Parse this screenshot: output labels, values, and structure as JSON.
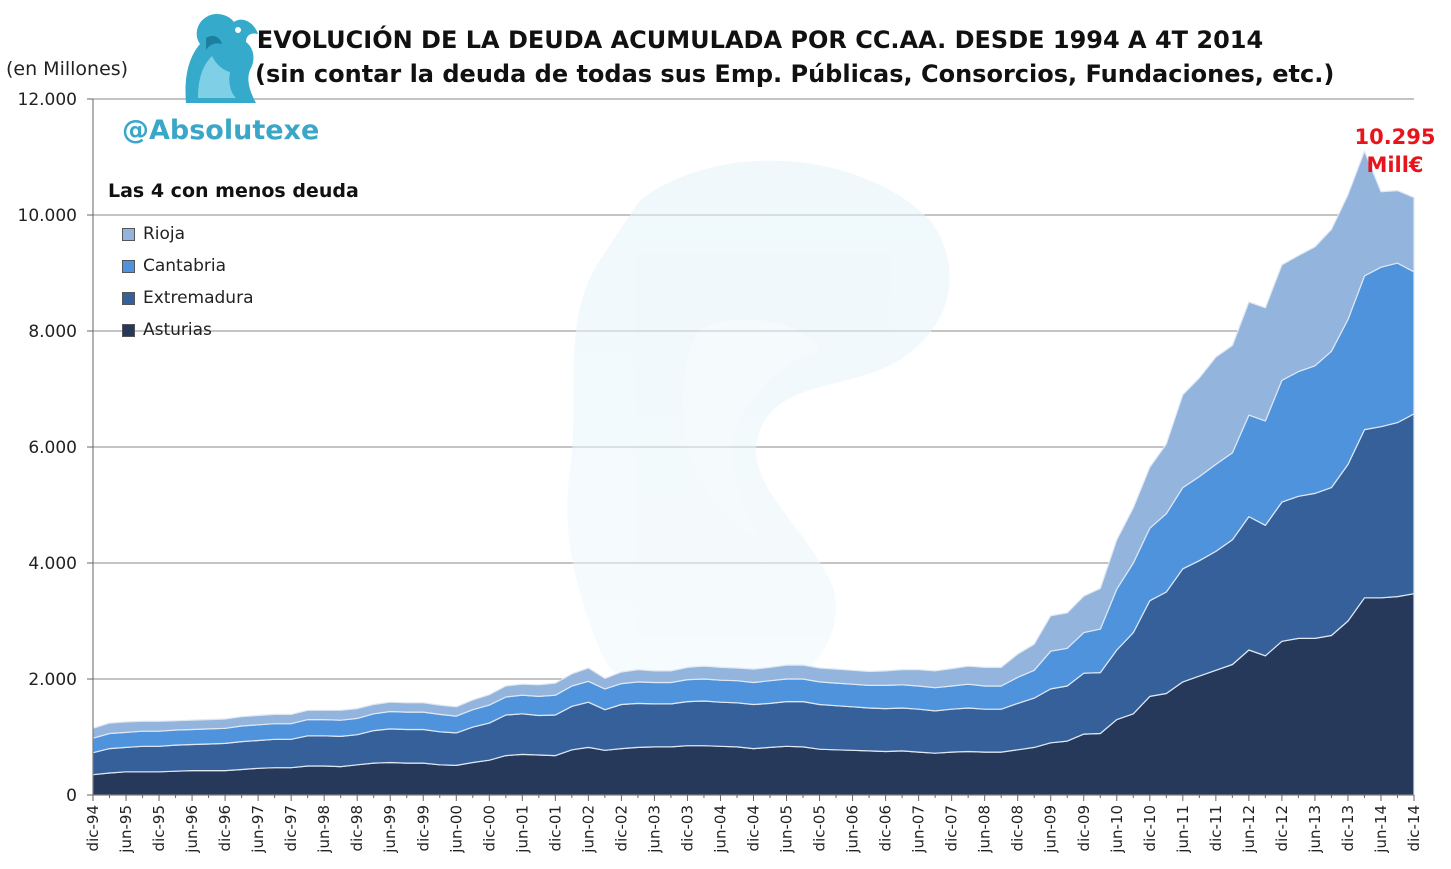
{
  "title_line1": "EVOLUCIÓN DE LA DEUDA ACUMULADA POR CC.AA. DESDE 1994 A 4T 2014",
  "title_line2": "(sin contar la deuda de todas sus Emp. Públicas, Consorcios, Fundaciones, etc.)",
  "units_label": "(en Millones)",
  "brand": "@Absolutexe",
  "legend_title": "Las 4 con menos deuda",
  "final_value_label": "10.295",
  "final_unit_label": "Mill€",
  "colors": {
    "asturias": "#26395a",
    "extremadura": "#35609a",
    "cantabria": "#4f93dd",
    "rioja": "#93b4dc"
  },
  "chart_data": {
    "type": "area",
    "stacked": true,
    "grid": true,
    "legend_position": "top-left",
    "ylim": [
      0,
      12000
    ],
    "yticks": [
      "0",
      "2.000",
      "4.000",
      "6.000",
      "8.000",
      "10.000",
      "12.000"
    ],
    "ytick_values": [
      0,
      2000,
      4000,
      6000,
      8000,
      10000,
      12000
    ],
    "x": [
      "dic-94",
      "mar-95",
      "jun-95",
      "sep-95",
      "dic-95",
      "mar-96",
      "jun-96",
      "sep-96",
      "dic-96",
      "mar-97",
      "jun-97",
      "sep-97",
      "dic-97",
      "mar-98",
      "jun-98",
      "sep-98",
      "dic-98",
      "mar-99",
      "jun-99",
      "sep-99",
      "dic-99",
      "mar-00",
      "jun-00",
      "sep-00",
      "dic-00",
      "mar-01",
      "jun-01",
      "sep-01",
      "dic-01",
      "mar-02",
      "jun-02",
      "sep-02",
      "dic-02",
      "mar-03",
      "jun-03",
      "sep-03",
      "dic-03",
      "mar-04",
      "jun-04",
      "sep-04",
      "dic-04",
      "mar-05",
      "jun-05",
      "sep-05",
      "dic-05",
      "mar-06",
      "jun-06",
      "sep-06",
      "dic-06",
      "mar-07",
      "jun-07",
      "sep-07",
      "dic-07",
      "mar-08",
      "jun-08",
      "sep-08",
      "dic-08",
      "mar-09",
      "jun-09",
      "sep-09",
      "dic-09",
      "mar-10",
      "jun-10",
      "sep-10",
      "dic-10",
      "mar-11",
      "jun-11",
      "sep-11",
      "dic-11",
      "mar-12",
      "jun-12",
      "sep-12",
      "dic-12",
      "mar-13",
      "jun-13",
      "sep-13",
      "dic-13",
      "mar-14",
      "jun-14",
      "sep-14",
      "dic-14"
    ],
    "xtick_labels": [
      "dic-94",
      "jun-95",
      "dic-95",
      "jun-96",
      "dic-96",
      "jun-97",
      "dic-97",
      "jun-98",
      "dic-98",
      "jun-99",
      "dic-99",
      "jun-00",
      "dic-00",
      "jun-01",
      "dic-01",
      "jun-02",
      "dic-02",
      "jun-03",
      "dic-03",
      "jun-04",
      "dic-04",
      "jun-05",
      "dic-05",
      "jun-06",
      "dic-06",
      "jun-07",
      "dic-07",
      "jun-08",
      "dic-08",
      "jun-09",
      "dic-09",
      "jun-10",
      "dic-10",
      "jun-11",
      "dic-11",
      "jun-12",
      "dic-12",
      "jun-13",
      "dic-13",
      "jun-14",
      "dic-14"
    ],
    "series": [
      {
        "name": "Asturias",
        "values": [
          350,
          380,
          400,
          400,
          400,
          410,
          420,
          420,
          420,
          440,
          460,
          470,
          470,
          500,
          500,
          490,
          520,
          550,
          560,
          550,
          550,
          520,
          510,
          560,
          600,
          680,
          700,
          690,
          680,
          780,
          820,
          770,
          800,
          820,
          830,
          830,
          850,
          850,
          840,
          830,
          800,
          820,
          840,
          830,
          790,
          780,
          770,
          760,
          750,
          760,
          740,
          720,
          740,
          750,
          740,
          740,
          780,
          820,
          900,
          930,
          1050,
          1060,
          1300,
          1400,
          1700,
          1750,
          1950,
          2050,
          2150,
          2250,
          2500,
          2400,
          2650,
          2700,
          2700,
          2750,
          3000,
          3400,
          3400,
          3420,
          3470
        ]
      },
      {
        "name": "Extremadura",
        "values": [
          380,
          420,
          420,
          440,
          440,
          450,
          450,
          460,
          470,
          480,
          480,
          490,
          490,
          520,
          520,
          520,
          520,
          560,
          580,
          580,
          580,
          570,
          560,
          610,
          640,
          700,
          700,
          680,
          700,
          750,
          780,
          700,
          760,
          760,
          740,
          740,
          760,
          770,
          760,
          760,
          760,
          760,
          770,
          780,
          770,
          760,
          750,
          740,
          740,
          740,
          740,
          730,
          740,
          750,
          740,
          740,
          800,
          850,
          930,
          950,
          1050,
          1050,
          1200,
          1400,
          1650,
          1750,
          1950,
          1990,
          2050,
          2150,
          2300,
          2250,
          2400,
          2450,
          2500,
          2550,
          2700,
          2900,
          2950,
          3000,
          3100
        ]
      },
      {
        "name": "Cantabria",
        "values": [
          250,
          260,
          260,
          260,
          260,
          260,
          260,
          260,
          260,
          270,
          270,
          270,
          270,
          280,
          280,
          280,
          280,
          290,
          300,
          300,
          300,
          300,
          290,
          300,
          310,
          310,
          320,
          330,
          340,
          350,
          360,
          360,
          360,
          370,
          370,
          370,
          380,
          380,
          380,
          380,
          380,
          390,
          390,
          390,
          390,
          390,
          390,
          390,
          400,
          400,
          400,
          400,
          400,
          410,
          400,
          400,
          450,
          480,
          650,
          650,
          700,
          750,
          1050,
          1200,
          1250,
          1350,
          1400,
          1450,
          1500,
          1500,
          1750,
          1800,
          2100,
          2150,
          2200,
          2350,
          2500,
          2650,
          2750,
          2750,
          2450
        ]
      },
      {
        "name": "Rioja",
        "values": [
          170,
          180,
          180,
          170,
          170,
          160,
          160,
          160,
          160,
          160,
          160,
          160,
          160,
          160,
          160,
          170,
          170,
          160,
          160,
          160,
          160,
          160,
          160,
          170,
          180,
          190,
          190,
          200,
          210,
          210,
          230,
          180,
          200,
          210,
          200,
          200,
          210,
          220,
          220,
          220,
          230,
          230,
          240,
          240,
          240,
          240,
          240,
          240,
          250,
          260,
          280,
          290,
          300,
          310,
          320,
          320,
          400,
          450,
          610,
          610,
          630,
          700,
          850,
          950,
          1050,
          1200,
          1600,
          1700,
          1850,
          1850,
          1950,
          1950,
          1990,
          2000,
          2050,
          2100,
          2150,
          2150,
          1300,
          1250,
          1280
        ]
      }
    ],
    "final_total": 10295
  }
}
